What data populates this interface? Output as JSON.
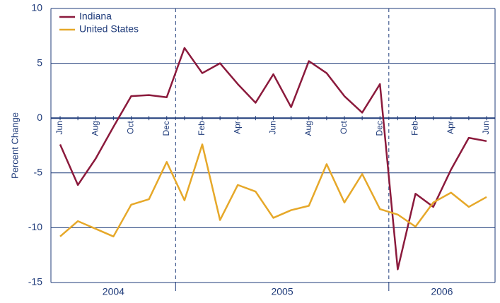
{
  "chart_data": {
    "type": "line",
    "y_label": "Percent Change",
    "categories": [
      "Jun",
      null,
      "Aug",
      null,
      "Oct",
      null,
      "Dec",
      null,
      "Feb",
      null,
      "Apr",
      null,
      "Jun",
      null,
      "Aug",
      null,
      "Oct",
      null,
      "Dec",
      null,
      "Feb",
      null,
      "Apr",
      null,
      "Jun"
    ],
    "years": [
      "2004",
      "2005",
      "2006"
    ],
    "series": [
      {
        "name": "Indiana",
        "color": "#8b1a3c",
        "values": [
          -2.4,
          -6.1,
          -3.7,
          -0.8,
          2.0,
          2.1,
          1.9,
          6.4,
          4.1,
          5.0,
          3.1,
          1.4,
          4.0,
          1.0,
          5.2,
          4.1,
          2.0,
          0.5,
          3.1,
          -13.8,
          -6.9,
          -8.1,
          -4.7,
          -1.8,
          -2.1
        ]
      },
      {
        "name": "United States",
        "color": "#e6a829",
        "values": [
          -10.8,
          -9.4,
          -10.1,
          -10.8,
          -7.9,
          -7.4,
          -4.0,
          -7.5,
          -2.4,
          -9.3,
          -6.1,
          -6.7,
          -9.1,
          -8.4,
          -8.0,
          -4.2,
          -7.7,
          -5.1,
          -8.3,
          -8.8,
          -9.9,
          -7.7,
          -6.8,
          -8.1,
          -7.2
        ]
      }
    ],
    "ylim": [
      -15,
      10
    ],
    "yticks": [
      -15,
      -10,
      -5,
      0,
      5,
      10
    ],
    "grid": true,
    "legend": "top-left"
  }
}
